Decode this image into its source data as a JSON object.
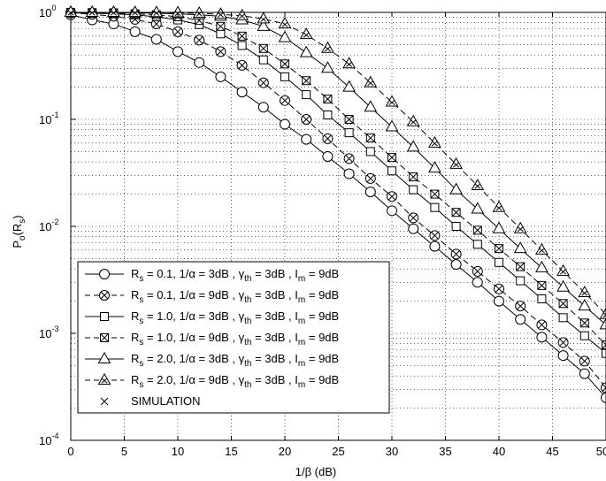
{
  "chart_data": {
    "type": "line",
    "title": "",
    "xlabel": "1/β (dB)",
    "ylabel": "P_o(R_s)",
    "xlim": [
      0,
      50
    ],
    "ylim": [
      0.0001,
      1
    ],
    "yscale": "log",
    "grid": true,
    "x_ticks": [
      0,
      5,
      10,
      15,
      20,
      25,
      30,
      35,
      40,
      45,
      50
    ],
    "y_ticks": [
      {
        "base": "10",
        "exp": "-4"
      },
      {
        "base": "10",
        "exp": "-3"
      },
      {
        "base": "10",
        "exp": "-2"
      },
      {
        "base": "10",
        "exp": "-1"
      },
      {
        "base": "10",
        "exp": "0"
      }
    ],
    "legend_position": "bottom-left",
    "x": [
      0,
      2,
      4,
      6,
      8,
      10,
      12,
      14,
      16,
      18,
      20,
      22,
      24,
      26,
      28,
      30,
      32,
      34,
      36,
      38,
      40,
      42,
      44,
      46,
      48,
      50
    ],
    "series": [
      {
        "name": "R_s = 0.1, 1/α = 3dB , γ_th = 3dB , I_m = 9dB",
        "label_parts": {
          "r_sub": "s",
          "r_rest": " = 0.1, 1/α = 3dB , ",
          "g_sub": "th",
          "g_rest": " = 3dB , ",
          "i_sub": "m",
          "i_rest": " = 9dB"
        },
        "marker": "circle",
        "line": "solid",
        "values": [
          0.95,
          0.85,
          0.78,
          0.66,
          0.56,
          0.43,
          0.34,
          0.25,
          0.18,
          0.13,
          0.09,
          0.065,
          0.045,
          0.031,
          0.021,
          0.014,
          0.0095,
          0.0065,
          0.0044,
          0.003,
          0.002,
          0.00135,
          0.00092,
          0.00062,
          0.00042,
          0.00025
        ]
      },
      {
        "name": "R_s = 0.1, 1/α = 9dB , γ_th = 3dB , I_m = 9dB",
        "label_parts": {
          "r_sub": "s",
          "r_rest": " = 0.1, 1/α = 9dB , ",
          "g_sub": "th",
          "g_rest": " = 3dB , ",
          "i_sub": "m",
          "i_rest": " = 9dB"
        },
        "marker": "circle-x",
        "line": "dashed",
        "values": [
          0.99,
          0.96,
          0.92,
          0.86,
          0.78,
          0.66,
          0.55,
          0.43,
          0.32,
          0.22,
          0.15,
          0.1,
          0.066,
          0.043,
          0.028,
          0.019,
          0.012,
          0.0082,
          0.0055,
          0.0038,
          0.0026,
          0.0018,
          0.0012,
          0.00082,
          0.00055,
          0.00031
        ]
      },
      {
        "name": "R_s = 1.0, 1/α = 3dB , γ_th = 3dB , I_m = 9dB",
        "label_parts": {
          "r_sub": "s",
          "r_rest": " = 1.0, 1/α = 3dB , ",
          "g_sub": "th",
          "g_rest": " = 3dB , ",
          "i_sub": "m",
          "i_rest": " = 9dB"
        },
        "marker": "square",
        "line": "solid",
        "values": [
          0.99,
          0.98,
          0.97,
          0.95,
          0.91,
          0.85,
          0.77,
          0.63,
          0.49,
          0.36,
          0.25,
          0.17,
          0.11,
          0.075,
          0.05,
          0.033,
          0.022,
          0.015,
          0.01,
          0.0068,
          0.0046,
          0.0031,
          0.0021,
          0.0014,
          0.00095,
          0.00065
        ]
      },
      {
        "name": "R_s = 1.0, 1/α = 9dB , γ_th = 3dB , I_m = 9dB",
        "label_parts": {
          "r_sub": "s",
          "r_rest": " = 1.0, 1/α = 9dB , ",
          "g_sub": "th",
          "g_rest": " = 3dB , ",
          "i_sub": "m",
          "i_rest": " = 9dB"
        },
        "marker": "square-x",
        "line": "dashed",
        "values": [
          1.0,
          0.995,
          0.99,
          0.97,
          0.95,
          0.91,
          0.84,
          0.74,
          0.6,
          0.46,
          0.33,
          0.23,
          0.155,
          0.1,
          0.067,
          0.044,
          0.029,
          0.02,
          0.0135,
          0.0092,
          0.0062,
          0.0042,
          0.0028,
          0.0019,
          0.00125,
          0.00078
        ]
      },
      {
        "name": "R_s = 2.0, 1/α = 3dB , γ_th = 3dB , I_m = 9dB",
        "label_parts": {
          "r_sub": "s",
          "r_rest": " = 2.0, 1/α = 3dB , ",
          "g_sub": "th",
          "g_rest": " = 3dB , ",
          "i_sub": "m",
          "i_rest": " = 9dB"
        },
        "marker": "triangle",
        "line": "solid",
        "values": [
          1.0,
          0.998,
          0.995,
          0.99,
          0.98,
          0.97,
          0.95,
          0.92,
          0.85,
          0.74,
          0.58,
          0.42,
          0.3,
          0.2,
          0.13,
          0.085,
          0.055,
          0.035,
          0.022,
          0.0145,
          0.0095,
          0.0062,
          0.0041,
          0.0027,
          0.0018,
          0.0012
        ]
      },
      {
        "name": "R_s = 2.0, 1/α = 9dB , γ_th = 3dB , I_m = 9dB",
        "label_parts": {
          "r_sub": "s",
          "r_rest": " = 2.0, 1/α = 9dB , ",
          "g_sub": "th",
          "g_rest": " = 3dB , ",
          "i_sub": "m",
          "i_rest": " = 9dB"
        },
        "marker": "triangle-x",
        "line": "dashed",
        "values": [
          1.0,
          1.0,
          0.999,
          0.998,
          0.995,
          0.99,
          0.98,
          0.96,
          0.93,
          0.87,
          0.78,
          0.62,
          0.46,
          0.33,
          0.22,
          0.145,
          0.095,
          0.06,
          0.038,
          0.024,
          0.015,
          0.0095,
          0.006,
          0.0038,
          0.0024,
          0.0015
        ]
      }
    ],
    "simulation_label": "SIMULATION"
  }
}
